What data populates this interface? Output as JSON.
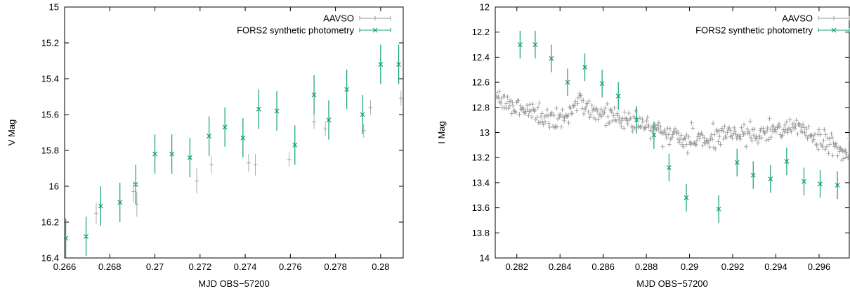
{
  "chart_data": [
    {
      "type": "scatter",
      "title": "",
      "xlabel": "MJD OBS−57200",
      "ylabel": "V Mag",
      "xlim": [
        0.266,
        0.281
      ],
      "ylim": [
        15,
        16.4
      ],
      "y_reversed": true,
      "xticks": [
        "0.266",
        "0.268",
        "0.27",
        "0.272",
        "0.274",
        "0.276",
        "0.278",
        "0.28"
      ],
      "yticks": [
        "15",
        "15.2",
        "15.4",
        "15.6",
        "15.8",
        "16",
        "16.2",
        "16.4"
      ],
      "xtick_values": [
        0.266,
        0.268,
        0.27,
        0.272,
        0.274,
        0.276,
        0.278,
        0.28
      ],
      "ytick_values": [
        15,
        15.2,
        15.4,
        15.6,
        15.8,
        16,
        16.2,
        16.4
      ],
      "legend_position": "top-right",
      "grid": false,
      "series": [
        {
          "name": "AAVSO",
          "color": "#9a9a9a",
          "marker": "plus",
          "points": [
            {
              "x": 0.2674,
              "y": 16.15,
              "err": 0.06
            },
            {
              "x": 0.26905,
              "y": 16.03,
              "err": 0.06
            },
            {
              "x": 0.2692,
              "y": 16.1,
              "err": 0.07
            },
            {
              "x": 0.27185,
              "y": 15.97,
              "err": 0.07
            },
            {
              "x": 0.2725,
              "y": 15.88,
              "err": 0.05
            },
            {
              "x": 0.27415,
              "y": 15.87,
              "err": 0.05
            },
            {
              "x": 0.27445,
              "y": 15.88,
              "err": 0.06
            },
            {
              "x": 0.27595,
              "y": 15.85,
              "err": 0.04
            },
            {
              "x": 0.27705,
              "y": 15.64,
              "err": 0.04
            },
            {
              "x": 0.27755,
              "y": 15.68,
              "err": 0.04
            },
            {
              "x": 0.27925,
              "y": 15.69,
              "err": 0.04
            },
            {
              "x": 0.27955,
              "y": 15.56,
              "err": 0.04
            },
            {
              "x": 0.2809,
              "y": 15.51,
              "err": 0.04
            }
          ]
        },
        {
          "name": "FORS2 synthetic photometry",
          "color": "#119e78",
          "marker": "x",
          "points": [
            {
              "x": 0.26605,
              "y": 16.29,
              "err": 0.11
            },
            {
              "x": 0.26695,
              "y": 16.28,
              "err": 0.11
            },
            {
              "x": 0.2676,
              "y": 16.11,
              "err": 0.11
            },
            {
              "x": 0.26845,
              "y": 16.09,
              "err": 0.11
            },
            {
              "x": 0.26915,
              "y": 15.99,
              "err": 0.11
            },
            {
              "x": 0.27,
              "y": 15.82,
              "err": 0.11
            },
            {
              "x": 0.27075,
              "y": 15.82,
              "err": 0.11
            },
            {
              "x": 0.27155,
              "y": 15.84,
              "err": 0.11
            },
            {
              "x": 0.2724,
              "y": 15.72,
              "err": 0.11
            },
            {
              "x": 0.2731,
              "y": 15.67,
              "err": 0.11
            },
            {
              "x": 0.2739,
              "y": 15.73,
              "err": 0.11
            },
            {
              "x": 0.2746,
              "y": 15.57,
              "err": 0.11
            },
            {
              "x": 0.2754,
              "y": 15.58,
              "err": 0.11
            },
            {
              "x": 0.2762,
              "y": 15.77,
              "err": 0.11
            },
            {
              "x": 0.27705,
              "y": 15.49,
              "err": 0.11
            },
            {
              "x": 0.2777,
              "y": 15.63,
              "err": 0.11
            },
            {
              "x": 0.2785,
              "y": 15.46,
              "err": 0.11
            },
            {
              "x": 0.2792,
              "y": 15.6,
              "err": 0.11
            },
            {
              "x": 0.28,
              "y": 15.32,
              "err": 0.11
            },
            {
              "x": 0.2808,
              "y": 15.32,
              "err": 0.11
            }
          ]
        }
      ]
    },
    {
      "type": "scatter",
      "title": "",
      "xlabel": "MJD OBS−57200",
      "ylabel": "I Mag",
      "xlim": [
        0.281,
        0.2974
      ],
      "ylim": [
        12,
        14
      ],
      "y_reversed": true,
      "xticks": [
        "0.282",
        "0.284",
        "0.286",
        "0.288",
        "0.29",
        "0.292",
        "0.294",
        "0.296"
      ],
      "yticks": [
        "12",
        "12.2",
        "12.4",
        "12.6",
        "12.8",
        "13",
        "13.2",
        "13.4",
        "13.6",
        "13.8",
        "14"
      ],
      "xtick_values": [
        0.282,
        0.284,
        0.286,
        0.288,
        0.29,
        0.292,
        0.294,
        0.296
      ],
      "ytick_values": [
        12,
        12.2,
        12.4,
        12.6,
        12.8,
        13,
        13.2,
        13.4,
        13.6,
        13.8,
        14
      ],
      "legend_position": "top-right",
      "grid": false,
      "series": [
        {
          "name": "AAVSO",
          "color": "#9a9a9a",
          "marker": "plus",
          "trend": [
            {
              "x": 0.281,
              "y": 12.72
            },
            {
              "x": 0.2818,
              "y": 12.8
            },
            {
              "x": 0.2828,
              "y": 12.85
            },
            {
              "x": 0.2838,
              "y": 12.9
            },
            {
              "x": 0.2845,
              "y": 12.85
            },
            {
              "x": 0.2849,
              "y": 12.74
            },
            {
              "x": 0.2855,
              "y": 12.82
            },
            {
              "x": 0.2865,
              "y": 12.88
            },
            {
              "x": 0.2875,
              "y": 12.92
            },
            {
              "x": 0.2885,
              "y": 12.98
            },
            {
              "x": 0.2895,
              "y": 13.05
            },
            {
              "x": 0.2905,
              "y": 13.07
            },
            {
              "x": 0.2915,
              "y": 13.0
            },
            {
              "x": 0.2925,
              "y": 13.0
            },
            {
              "x": 0.2935,
              "y": 13.02
            },
            {
              "x": 0.2942,
              "y": 12.97
            },
            {
              "x": 0.2948,
              "y": 12.93
            },
            {
              "x": 0.2955,
              "y": 13.0
            },
            {
              "x": 0.2963,
              "y": 13.08
            },
            {
              "x": 0.2974,
              "y": 13.15
            }
          ],
          "count": 420,
          "scatter": 0.04,
          "err": 0.02
        },
        {
          "name": "FORS2 synthetic photometry",
          "color": "#119e78",
          "marker": "x",
          "points": [
            {
              "x": 0.28215,
              "y": 12.3,
              "err": 0.11
            },
            {
              "x": 0.28285,
              "y": 12.3,
              "err": 0.11
            },
            {
              "x": 0.2836,
              "y": 12.41,
              "err": 0.11
            },
            {
              "x": 0.28435,
              "y": 12.6,
              "err": 0.11
            },
            {
              "x": 0.28515,
              "y": 12.48,
              "err": 0.11
            },
            {
              "x": 0.28595,
              "y": 12.61,
              "err": 0.11
            },
            {
              "x": 0.2867,
              "y": 12.71,
              "err": 0.11
            },
            {
              "x": 0.28755,
              "y": 12.9,
              "err": 0.11
            },
            {
              "x": 0.28835,
              "y": 13.02,
              "err": 0.11
            },
            {
              "x": 0.28905,
              "y": 13.28,
              "err": 0.11
            },
            {
              "x": 0.28985,
              "y": 13.52,
              "err": 0.11
            },
            {
              "x": 0.29135,
              "y": 13.61,
              "err": 0.11
            },
            {
              "x": 0.2922,
              "y": 13.24,
              "err": 0.11
            },
            {
              "x": 0.29295,
              "y": 13.34,
              "err": 0.11
            },
            {
              "x": 0.29375,
              "y": 13.37,
              "err": 0.11
            },
            {
              "x": 0.2945,
              "y": 13.23,
              "err": 0.11
            },
            {
              "x": 0.2953,
              "y": 13.39,
              "err": 0.11
            },
            {
              "x": 0.29605,
              "y": 13.41,
              "err": 0.11
            },
            {
              "x": 0.29685,
              "y": 13.42,
              "err": 0.11
            }
          ]
        }
      ]
    }
  ]
}
